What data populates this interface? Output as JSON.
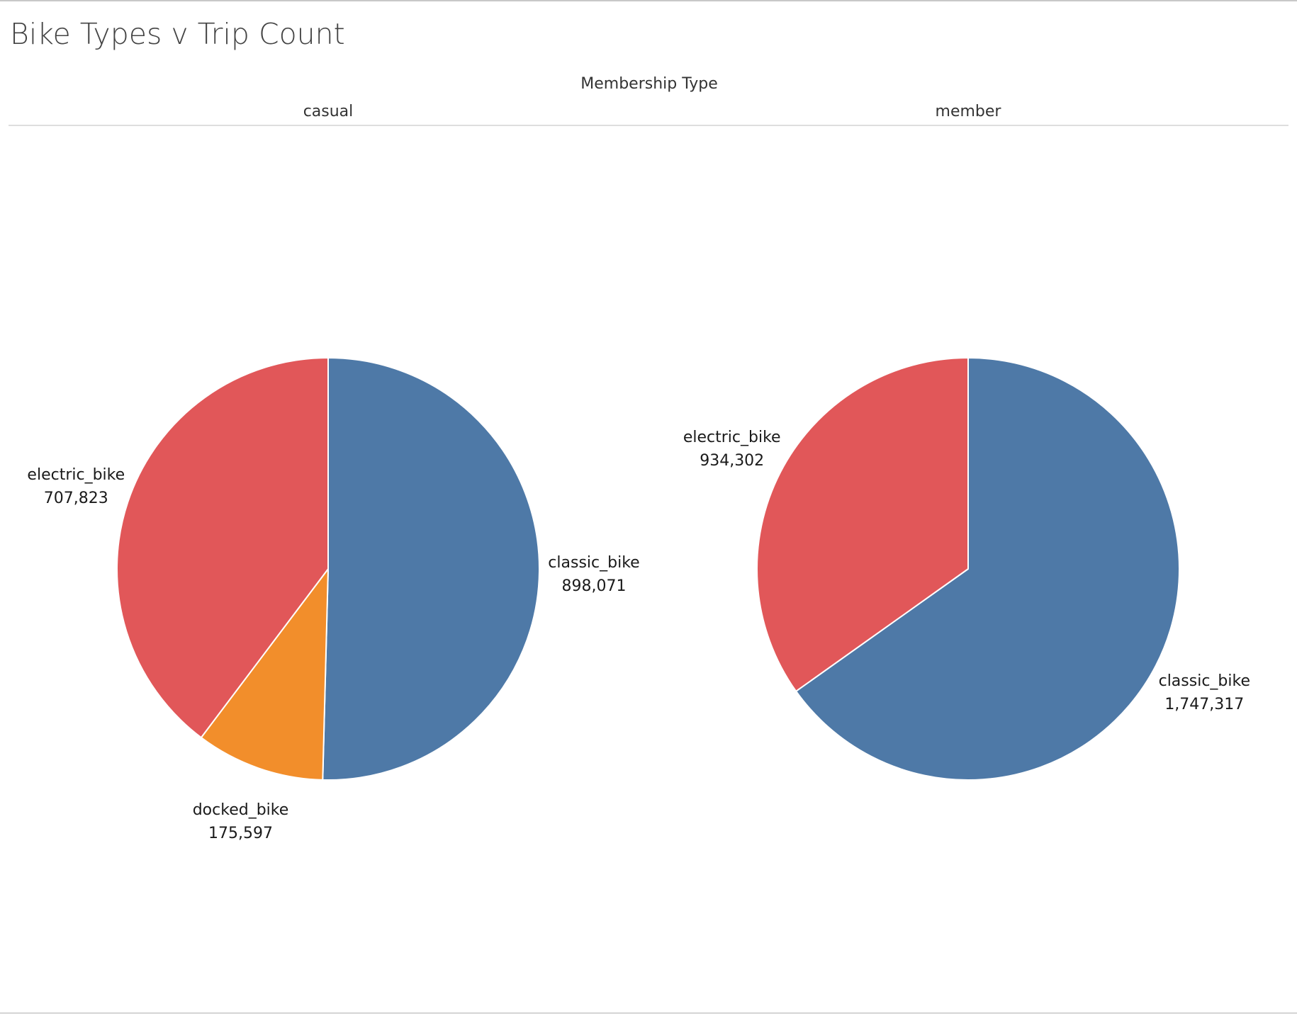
{
  "title": "Bike Types v Trip Count",
  "chart_data": {
    "type": "pie",
    "title": "Bike Types v Trip Count",
    "column_header": "Membership Type",
    "colors": {
      "classic_bike": "#4e79a7",
      "electric_bike": "#e15759",
      "docked_bike": "#f28e2b"
    },
    "legend": "none",
    "panels": [
      {
        "name": "casual",
        "slices": [
          {
            "label": "classic_bike",
            "value": 898071,
            "display": "898,071"
          },
          {
            "label": "docked_bike",
            "value": 175597,
            "display": "175,597"
          },
          {
            "label": "electric_bike",
            "value": 707823,
            "display": "707,823"
          }
        ]
      },
      {
        "name": "member",
        "slices": [
          {
            "label": "classic_bike",
            "value": 1747317,
            "display": "1,747,317"
          },
          {
            "label": "electric_bike",
            "value": 934302,
            "display": "934,302"
          }
        ]
      }
    ]
  }
}
